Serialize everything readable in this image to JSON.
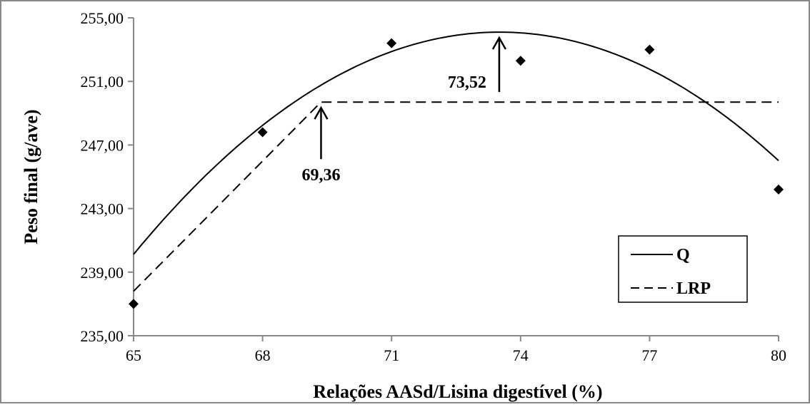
{
  "chart_data": {
    "type": "scatter",
    "title": "",
    "xlabel": "Relações AASd/Lisina digestível (%)",
    "ylabel": "Peso final (g/ave)",
    "xlim": [
      65,
      80
    ],
    "ylim": [
      235,
      255
    ],
    "xticks": [
      "65",
      "68",
      "71",
      "74",
      "77",
      "80"
    ],
    "yticks": [
      "235,00",
      "239,00",
      "243,00",
      "247,00",
      "251,00",
      "255,00"
    ],
    "grid": false,
    "legend_position": "bottom-right",
    "points": [
      {
        "x": 65,
        "y": 237.0
      },
      {
        "x": 68,
        "y": 247.8
      },
      {
        "x": 71,
        "y": 253.4
      },
      {
        "x": 74,
        "y": 252.3
      },
      {
        "x": 77,
        "y": 253.0
      },
      {
        "x": 80,
        "y": 244.2
      }
    ],
    "series": [
      {
        "name": "Q",
        "style": "solid",
        "model": "quadratic",
        "vertex_x": 73.52,
        "vertex_y": 254.1,
        "a": -0.1926,
        "y_at_65": 240.1
      },
      {
        "name": "LRP",
        "style": "dashed",
        "model": "linear-plateau",
        "breakpoint_x": 69.36,
        "plateau_y": 249.7,
        "y_at_65": 237.8
      }
    ],
    "annotations": [
      {
        "text": "69,36",
        "x": 69.36
      },
      {
        "text": "73,52",
        "x": 73.52
      }
    ]
  },
  "colors": {
    "line": "#000000",
    "frame": "#888888"
  }
}
